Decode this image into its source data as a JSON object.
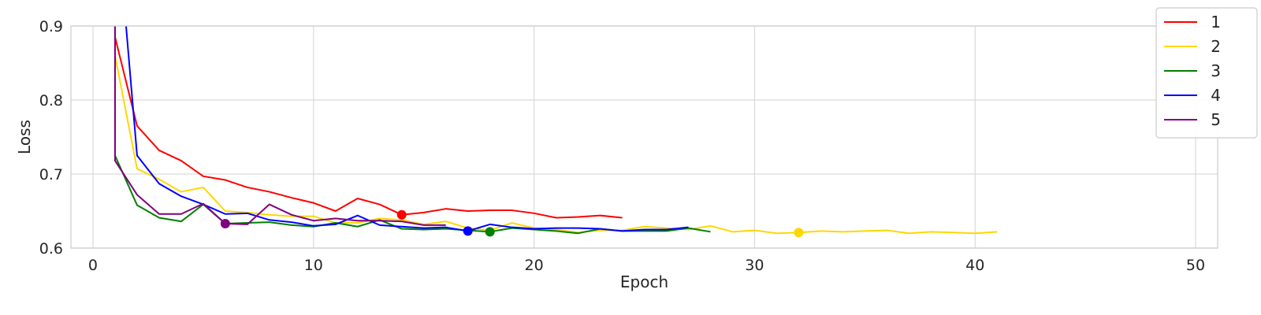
{
  "chart_data": {
    "type": "line",
    "title": "",
    "xlabel": "Epoch",
    "ylabel": "Loss",
    "xlim": [
      -1,
      51
    ],
    "ylim": [
      0.6,
      0.9
    ],
    "xticks": [
      0,
      10,
      20,
      30,
      40,
      50
    ],
    "yticks": [
      0.6,
      0.7,
      0.8,
      0.9
    ],
    "xtick_labels": [
      "0",
      "10",
      "20",
      "30",
      "40",
      "50"
    ],
    "ytick_labels": [
      "0.6",
      "0.7",
      "0.8",
      "0.9"
    ],
    "grid": true,
    "legend_position": "top-right",
    "series": [
      {
        "name": "1",
        "color": "#ff0000",
        "x": [
          1,
          2,
          3,
          4,
          5,
          6,
          7,
          8,
          9,
          10,
          11,
          12,
          13,
          14,
          15,
          16,
          17,
          18,
          19,
          20,
          21,
          22,
          23,
          24
        ],
        "y": [
          0.885,
          0.765,
          0.732,
          0.718,
          0.697,
          0.692,
          0.682,
          0.676,
          0.668,
          0.661,
          0.65,
          0.667,
          0.659,
          0.645,
          0.648,
          0.653,
          0.65,
          0.651,
          0.651,
          0.647,
          0.641,
          0.642,
          0.644,
          0.641
        ],
        "best": {
          "x": 14,
          "y": 0.645
        }
      },
      {
        "name": "2",
        "color": "#ffd700",
        "x": [
          1,
          2,
          3,
          4,
          5,
          6,
          7,
          8,
          9,
          10,
          11,
          12,
          13,
          14,
          15,
          16,
          17,
          18,
          19,
          20,
          21,
          22,
          23,
          24,
          25,
          26,
          27,
          28,
          29,
          30,
          31,
          32,
          33,
          34,
          35,
          36,
          37,
          38,
          39,
          40,
          41
        ],
        "y": [
          0.86,
          0.707,
          0.693,
          0.676,
          0.682,
          0.65,
          0.648,
          0.645,
          0.643,
          0.643,
          0.634,
          0.634,
          0.64,
          0.638,
          0.632,
          0.636,
          0.627,
          0.624,
          0.634,
          0.627,
          0.625,
          0.621,
          0.624,
          0.624,
          0.629,
          0.627,
          0.625,
          0.63,
          0.622,
          0.624,
          0.62,
          0.621,
          0.623,
          0.622,
          0.623,
          0.624,
          0.62,
          0.622,
          0.621,
          0.62,
          0.622
        ],
        "best": {
          "x": 32,
          "y": 0.621
        }
      },
      {
        "name": "3",
        "color": "#008000",
        "x": [
          1,
          2,
          3,
          4,
          5,
          6,
          7,
          8,
          9,
          10,
          11,
          12,
          13,
          14,
          15,
          16,
          17,
          18,
          19,
          20,
          21,
          22,
          23,
          24,
          25,
          26,
          27,
          28
        ],
        "y": [
          0.725,
          0.658,
          0.641,
          0.636,
          0.659,
          0.633,
          0.634,
          0.635,
          0.631,
          0.629,
          0.634,
          0.629,
          0.638,
          0.626,
          0.625,
          0.626,
          0.624,
          0.622,
          0.627,
          0.625,
          0.623,
          0.62,
          0.626,
          0.623,
          0.623,
          0.623,
          0.627,
          0.622
        ],
        "best": {
          "x": 18,
          "y": 0.622
        }
      },
      {
        "name": "4",
        "color": "#0000ff",
        "x": [
          1,
          1.5,
          2,
          3,
          4,
          5,
          6,
          7,
          8,
          9,
          10,
          11,
          12,
          13,
          14,
          15,
          16,
          17,
          18,
          19,
          20,
          21,
          22,
          23,
          24,
          25,
          26,
          27
        ],
        "y": [
          1.0,
          0.9,
          0.725,
          0.687,
          0.67,
          0.659,
          0.646,
          0.647,
          0.638,
          0.635,
          0.63,
          0.632,
          0.644,
          0.631,
          0.629,
          0.627,
          0.628,
          0.623,
          0.632,
          0.628,
          0.626,
          0.627,
          0.627,
          0.626,
          0.623,
          0.625,
          0.625,
          0.628
        ],
        "best": {
          "x": 17,
          "y": 0.623
        }
      },
      {
        "name": "5",
        "color": "#800080",
        "x": [
          1,
          2,
          3,
          4,
          5,
          6,
          7,
          8,
          9,
          10,
          11,
          12,
          13,
          14,
          15,
          16
        ],
        "y": [
          0.718,
          0.672,
          0.646,
          0.646,
          0.66,
          0.633,
          0.632,
          0.659,
          0.645,
          0.637,
          0.64,
          0.637,
          0.637,
          0.636,
          0.631,
          0.631
        ],
        "best": {
          "x": 6,
          "y": 0.633
        }
      }
    ]
  }
}
